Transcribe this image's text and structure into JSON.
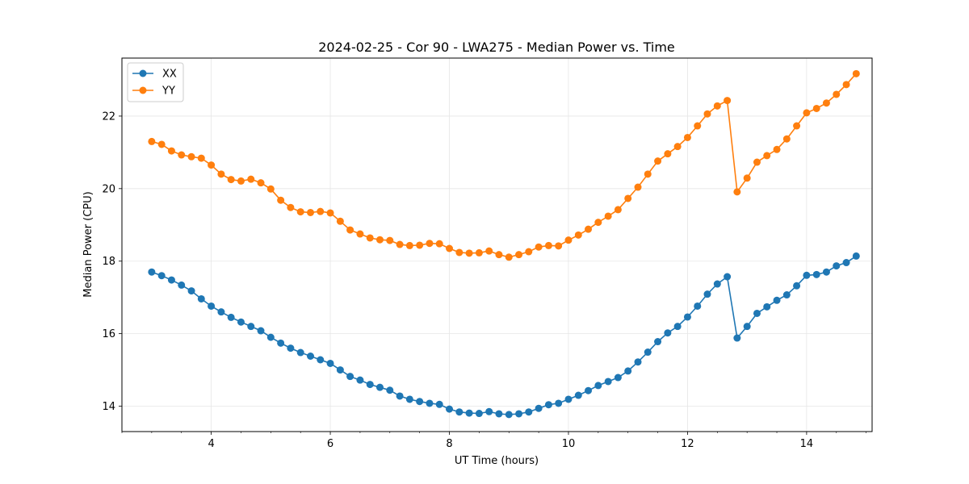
{
  "chart_data": {
    "type": "line",
    "title": "2024-02-25 - Cor 90 - LWA275 - Median Power vs. Time",
    "xlabel": "UT Time (hours)",
    "ylabel": "Median Power (CPU)",
    "xlim": [
      2.5,
      15.1
    ],
    "ylim": [
      13.3,
      23.6
    ],
    "xticks": [
      4,
      6,
      8,
      10,
      12,
      14
    ],
    "yticks": [
      14,
      16,
      18,
      20,
      22
    ],
    "grid": true,
    "legend_position": "top-left",
    "x": [
      3.0,
      3.167,
      3.333,
      3.5,
      3.667,
      3.833,
      4.0,
      4.167,
      4.333,
      4.5,
      4.667,
      4.833,
      5.0,
      5.167,
      5.333,
      5.5,
      5.667,
      5.833,
      6.0,
      6.167,
      6.333,
      6.5,
      6.667,
      6.833,
      7.0,
      7.167,
      7.333,
      7.5,
      7.667,
      7.833,
      8.0,
      8.167,
      8.333,
      8.5,
      8.667,
      8.833,
      9.0,
      9.167,
      9.333,
      9.5,
      9.667,
      9.833,
      10.0,
      10.167,
      10.333,
      10.5,
      10.667,
      10.833,
      11.0,
      11.167,
      11.333,
      11.5,
      11.667,
      11.833,
      12.0,
      12.167,
      12.333,
      12.5,
      12.667,
      12.833,
      13.0,
      13.167,
      13.333,
      13.5,
      13.667,
      13.833,
      14.0,
      14.167,
      14.333,
      14.5,
      14.667,
      14.833
    ],
    "series": [
      {
        "name": "XX",
        "color": "#1f77b4",
        "values": [
          17.7,
          17.6,
          17.48,
          17.34,
          17.18,
          16.96,
          16.76,
          16.6,
          16.45,
          16.32,
          16.2,
          16.08,
          15.9,
          15.74,
          15.6,
          15.48,
          15.38,
          15.28,
          15.18,
          15.0,
          14.82,
          14.72,
          14.6,
          14.52,
          14.44,
          14.28,
          14.19,
          14.13,
          14.08,
          14.05,
          13.92,
          13.84,
          13.81,
          13.8,
          13.85,
          13.79,
          13.77,
          13.79,
          13.84,
          13.94,
          14.04,
          14.08,
          14.19,
          14.3,
          14.43,
          14.57,
          14.68,
          14.79,
          14.97,
          15.22,
          15.49,
          15.78,
          16.02,
          16.2,
          16.46,
          16.76,
          17.09,
          17.37,
          17.57,
          15.88,
          16.2,
          16.56,
          16.74,
          16.92,
          17.07,
          17.32,
          17.61,
          17.63,
          17.7,
          17.87,
          17.96,
          18.14
        ]
      },
      {
        "name": "YY",
        "color": "#ff7f0e",
        "values": [
          21.3,
          21.22,
          21.04,
          20.93,
          20.88,
          20.84,
          20.65,
          20.4,
          20.25,
          20.21,
          20.26,
          20.16,
          19.99,
          19.68,
          19.48,
          19.36,
          19.34,
          19.37,
          19.33,
          19.1,
          18.86,
          18.75,
          18.64,
          18.59,
          18.57,
          18.46,
          18.43,
          18.44,
          18.49,
          18.48,
          18.35,
          18.24,
          18.22,
          18.23,
          18.28,
          18.18,
          18.11,
          18.18,
          18.26,
          18.39,
          18.43,
          18.42,
          18.58,
          18.72,
          18.88,
          19.07,
          19.24,
          19.42,
          19.73,
          20.04,
          20.4,
          20.76,
          20.96,
          21.16,
          21.41,
          21.73,
          22.06,
          22.28,
          22.43,
          19.91,
          20.29,
          20.73,
          20.91,
          21.08,
          21.37,
          21.73,
          22.09,
          22.21,
          22.36,
          22.6,
          22.87,
          23.17
        ]
      }
    ]
  }
}
